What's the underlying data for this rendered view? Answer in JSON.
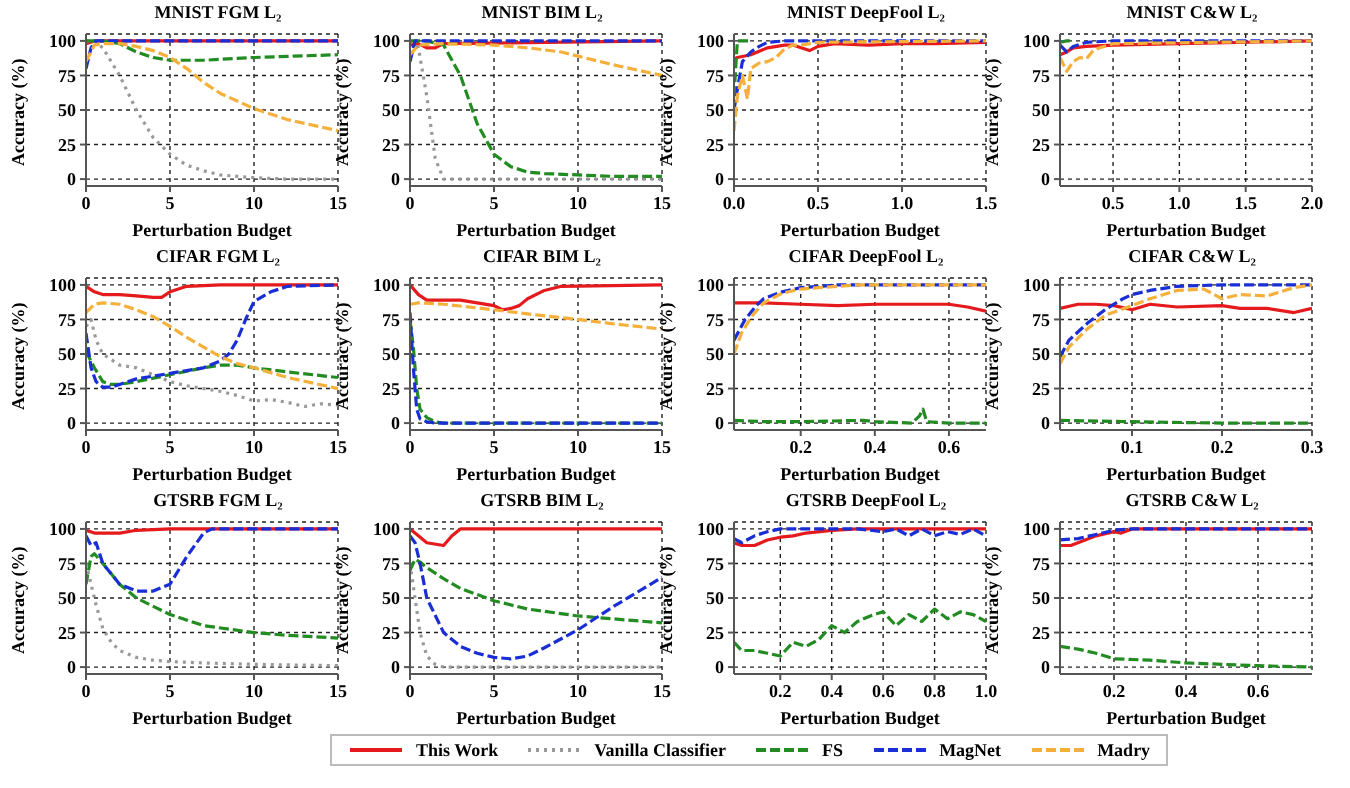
{
  "chart_data": [
    {
      "type": "line",
      "title": "MNIST FGM L₂",
      "xlabel": "Perturbation Budget",
      "ylabel": "Accuracy (%)",
      "xlim": [
        0,
        15
      ],
      "xticks": [
        0,
        5,
        10,
        15
      ],
      "ylim": [
        -5,
        105
      ],
      "yticks": [
        0,
        25,
        50,
        75,
        100
      ],
      "grid": true,
      "legend": "bottom",
      "series": [
        {
          "name": "This Work",
          "color": "#e41a1c",
          "line_style": "solid",
          "x": [
            0,
            0.5,
            15
          ],
          "values": [
            98,
            100,
            100
          ]
        },
        {
          "name": "Vanilla Classifier",
          "color": "#999999",
          "line_style": "dotted",
          "x": [
            0,
            0.5,
            1,
            2,
            3,
            4,
            5,
            6,
            7,
            8,
            9,
            10,
            12,
            15
          ],
          "values": [
            100,
            100,
            95,
            75,
            50,
            30,
            18,
            10,
            6,
            3,
            2,
            1,
            0,
            0
          ]
        },
        {
          "name": "FS",
          "color": "#228b22",
          "line_style": "dashed",
          "x": [
            0,
            1,
            2,
            3,
            4,
            5,
            6,
            7,
            10,
            15
          ],
          "values": [
            100,
            100,
            98,
            92,
            88,
            86,
            86,
            86,
            88,
            90
          ]
        },
        {
          "name": "MagNet",
          "color": "#1a2ed6",
          "line_style": "dashed",
          "x": [
            0,
            0.3,
            0.6,
            15
          ],
          "values": [
            80,
            95,
            100,
            100
          ]
        },
        {
          "name": "Madry",
          "color": "#f5b03c",
          "line_style": "dashed",
          "x": [
            0,
            0.5,
            1,
            2,
            3,
            4,
            5,
            6,
            7,
            8,
            10,
            12,
            15
          ],
          "values": [
            85,
            97,
            98,
            98,
            96,
            93,
            88,
            80,
            70,
            62,
            51,
            43,
            35
          ]
        }
      ]
    },
    {
      "type": "line",
      "title": "MNIST BIM L₂",
      "xlabel": "Perturbation Budget",
      "ylabel": "Accuracy (%)",
      "xlim": [
        0,
        15
      ],
      "xticks": [
        0,
        5,
        10,
        15
      ],
      "ylim": [
        -5,
        105
      ],
      "yticks": [
        0,
        25,
        50,
        75,
        100
      ],
      "grid": true,
      "series": [
        {
          "name": "This Work",
          "color": "#e41a1c",
          "line_style": "solid",
          "x": [
            0,
            0.5,
            1,
            1.5,
            2,
            15
          ],
          "values": [
            97,
            98,
            95,
            95,
            98,
            100
          ]
        },
        {
          "name": "Vanilla Classifier",
          "color": "#999999",
          "line_style": "dotted",
          "x": [
            0,
            0.5,
            1,
            1.5,
            2,
            15
          ],
          "values": [
            100,
            95,
            60,
            15,
            0,
            0
          ]
        },
        {
          "name": "FS",
          "color": "#228b22",
          "line_style": "dashed",
          "x": [
            0,
            1,
            2,
            3,
            4,
            5,
            6,
            7,
            8,
            10,
            12,
            15
          ],
          "values": [
            100,
            100,
            97,
            75,
            40,
            18,
            9,
            5,
            4,
            3,
            2,
            2
          ]
        },
        {
          "name": "MagNet",
          "color": "#1a2ed6",
          "line_style": "dashed",
          "x": [
            0,
            0.3,
            15
          ],
          "values": [
            85,
            100,
            100
          ]
        },
        {
          "name": "Madry",
          "color": "#f5b03c",
          "line_style": "dashed",
          "x": [
            0,
            0.5,
            2,
            5,
            7,
            9,
            10,
            12,
            15
          ],
          "values": [
            90,
            97,
            98,
            97,
            95,
            92,
            89,
            83,
            75
          ]
        }
      ]
    },
    {
      "type": "line",
      "title": "MNIST DeepFool L₂",
      "xlabel": "Perturbation Budget",
      "ylabel": "Accuracy (%)",
      "xlim": [
        0,
        1.5
      ],
      "xticks": [
        {
          "value": 0,
          "label": "0.0"
        },
        0.5,
        {
          "value": 1,
          "label": "1.0"
        },
        1.5
      ],
      "ylim": [
        -5,
        105
      ],
      "yticks": [
        0,
        25,
        50,
        75,
        100
      ],
      "grid": true,
      "series": [
        {
          "name": "This Work",
          "color": "#e41a1c",
          "line_style": "solid",
          "x": [
            0,
            0.02,
            0.1,
            0.2,
            0.3,
            0.35,
            0.4,
            0.45,
            0.5,
            0.6,
            0.8,
            1.0,
            1.2,
            1.5
          ],
          "values": [
            87,
            88,
            90,
            95,
            97,
            97,
            95,
            93,
            96,
            98,
            97,
            98,
            98,
            99
          ]
        },
        {
          "name": "MagNet",
          "color": "#1a2ed6",
          "line_style": "dashed",
          "x": [
            0,
            0.02,
            0.05,
            0.1,
            0.15,
            0.2,
            0.3,
            0.5,
            1.5
          ],
          "values": [
            50,
            65,
            85,
            92,
            96,
            99,
            100,
            100,
            100
          ]
        },
        {
          "name": "FS",
          "color": "#228b22",
          "line_style": "dashed",
          "x": [
            0,
            0.02,
            0.05,
            0.1
          ],
          "values": [
            60,
            100,
            100,
            100
          ]
        },
        {
          "name": "Madry",
          "color": "#f5b03c",
          "line_style": "dashed",
          "x": [
            0,
            0.02,
            0.05,
            0.08,
            0.1,
            0.15,
            0.2,
            0.25,
            0.3,
            0.35,
            0.4,
            0.5,
            1.5
          ],
          "values": [
            35,
            60,
            75,
            58,
            80,
            84,
            85,
            88,
            94,
            97,
            97,
            99,
            100
          ]
        }
      ]
    },
    {
      "type": "line",
      "title": "MNIST C&W L₂",
      "xlabel": "Perturbation Budget",
      "ylabel": "Accuracy (%)",
      "xlim": [
        0.1,
        2
      ],
      "xticks": [
        0.5,
        {
          "value": 1,
          "label": "1.0"
        },
        1.5,
        {
          "value": 2,
          "label": "2.0"
        }
      ],
      "ylim": [
        -5,
        105
      ],
      "yticks": [
        0,
        25,
        50,
        75,
        100
      ],
      "grid": true,
      "series": [
        {
          "name": "This Work",
          "color": "#e41a1c",
          "line_style": "solid",
          "x": [
            0.1,
            0.15,
            0.2,
            0.3,
            0.5,
            1,
            2
          ],
          "values": [
            90,
            92,
            95,
            96,
            97,
            98,
            100
          ]
        },
        {
          "name": "MagNet",
          "color": "#1a2ed6",
          "line_style": "dashed",
          "x": [
            0.1,
            0.15,
            0.2,
            0.3,
            0.5,
            2
          ],
          "values": [
            97,
            92,
            96,
            99,
            100,
            100
          ]
        },
        {
          "name": "Madry",
          "color": "#f5b03c",
          "line_style": "dashed",
          "x": [
            0.1,
            0.15,
            0.2,
            0.25,
            0.3,
            0.35,
            0.4,
            0.5,
            2
          ],
          "values": [
            88,
            78,
            85,
            88,
            87,
            93,
            95,
            98,
            100
          ]
        },
        {
          "name": "FS",
          "color": "#228b22",
          "line_style": "dashed",
          "x": [
            0.1,
            0.15,
            0.2
          ],
          "values": [
            99,
            100,
            100
          ]
        }
      ]
    },
    {
      "type": "line",
      "title": "CIFAR FGM L₂",
      "xlabel": "Perturbation Budget",
      "ylabel": "Accuracy (%)",
      "xlim": [
        0,
        15
      ],
      "xticks": [
        0,
        5,
        10,
        15
      ],
      "ylim": [
        -5,
        105
      ],
      "yticks": [
        0,
        25,
        50,
        75,
        100
      ],
      "grid": true,
      "series": [
        {
          "name": "This Work",
          "color": "#e41a1c",
          "line_style": "solid",
          "x": [
            0,
            0.5,
            1,
            2,
            3,
            4,
            4.5,
            5,
            6,
            8,
            15
          ],
          "values": [
            99,
            95,
            93,
            93,
            92,
            91,
            91,
            95,
            99,
            100,
            100
          ]
        },
        {
          "name": "Vanilla Classifier",
          "color": "#999999",
          "line_style": "dotted",
          "x": [
            0,
            0.3,
            0.6,
            1,
            2,
            3,
            4,
            5,
            6,
            7,
            8,
            9,
            10,
            11,
            12,
            13,
            14,
            15
          ],
          "values": [
            70,
            75,
            60,
            50,
            42,
            40,
            35,
            30,
            27,
            25,
            23,
            20,
            16,
            17,
            15,
            12,
            14,
            13
          ]
        },
        {
          "name": "FS",
          "color": "#228b22",
          "line_style": "dashed",
          "x": [
            0,
            0.5,
            1,
            1.5,
            2,
            3,
            5,
            7,
            8,
            9,
            10,
            12,
            15
          ],
          "values": [
            52,
            40,
            30,
            28,
            28,
            30,
            35,
            40,
            42,
            42,
            40,
            37,
            33
          ]
        },
        {
          "name": "MagNet",
          "color": "#1a2ed6",
          "line_style": "dashed",
          "x": [
            0,
            0.3,
            0.6,
            1,
            1.5,
            2,
            3,
            5,
            6,
            7,
            8,
            8.5,
            9,
            9.5,
            10,
            11,
            12,
            15
          ],
          "values": [
            65,
            40,
            30,
            26,
            26,
            28,
            32,
            36,
            38,
            40,
            45,
            50,
            60,
            75,
            88,
            95,
            99,
            100
          ]
        },
        {
          "name": "Madry",
          "color": "#f5b03c",
          "line_style": "dashed",
          "x": [
            0,
            0.5,
            1,
            2,
            3,
            4,
            5,
            6,
            7,
            8,
            9,
            10,
            12,
            15
          ],
          "values": [
            80,
            86,
            87,
            86,
            82,
            77,
            70,
            62,
            55,
            48,
            43,
            40,
            33,
            25
          ]
        }
      ]
    },
    {
      "type": "line",
      "title": "CIFAR BIM L₂",
      "xlabel": "Perturbation Budget",
      "ylabel": "Accuracy (%)",
      "xlim": [
        0,
        15
      ],
      "xticks": [
        0,
        5,
        10,
        15
      ],
      "ylim": [
        -5,
        105
      ],
      "yticks": [
        0,
        25,
        50,
        75,
        100
      ],
      "grid": true,
      "series": [
        {
          "name": "This Work",
          "color": "#e41a1c",
          "line_style": "solid",
          "x": [
            0,
            0.5,
            1,
            2,
            3,
            4,
            5,
            5.5,
            6,
            6.5,
            7,
            8,
            9,
            15
          ],
          "values": [
            100,
            93,
            89,
            89,
            89,
            87,
            85,
            82,
            83,
            85,
            90,
            96,
            99,
            100
          ]
        },
        {
          "name": "FS",
          "color": "#228b22",
          "line_style": "dashed",
          "x": [
            0,
            0.2,
            0.4,
            0.6,
            1,
            1.5,
            2,
            15
          ],
          "values": [
            75,
            55,
            25,
            10,
            4,
            1,
            0,
            0
          ]
        },
        {
          "name": "MagNet",
          "color": "#1a2ed6",
          "line_style": "dashed",
          "x": [
            0,
            0.2,
            0.4,
            0.6,
            1,
            1.5,
            15
          ],
          "values": [
            80,
            40,
            10,
            3,
            1,
            0,
            0
          ]
        },
        {
          "name": "Madry",
          "color": "#f5b03c",
          "line_style": "dashed",
          "x": [
            0,
            0.5,
            2,
            5,
            7,
            10,
            12,
            15
          ],
          "values": [
            86,
            87,
            86,
            82,
            79,
            75,
            72,
            68
          ]
        }
      ]
    },
    {
      "type": "line",
      "title": "CIFAR DeepFool L₂",
      "xlabel": "Perturbation Budget",
      "ylabel": "Accuracy (%)",
      "xlim": [
        0.02,
        0.7
      ],
      "xticks": [
        0.2,
        0.4,
        0.6
      ],
      "ylim": [
        -5,
        105
      ],
      "yticks": [
        0,
        25,
        50,
        75,
        100
      ],
      "grid": true,
      "series": [
        {
          "name": "This Work",
          "color": "#e41a1c",
          "line_style": "solid",
          "x": [
            0.02,
            0.1,
            0.2,
            0.3,
            0.4,
            0.5,
            0.6,
            0.65,
            0.7
          ],
          "values": [
            87,
            87,
            86,
            85,
            86,
            86,
            86,
            84,
            81
          ]
        },
        {
          "name": "FS",
          "color": "#228b22",
          "line_style": "dashed",
          "x": [
            0.02,
            0.1,
            0.2,
            0.37,
            0.4,
            0.5,
            0.52,
            0.53,
            0.54,
            0.6,
            0.7
          ],
          "values": [
            2,
            1,
            1,
            2,
            1,
            0,
            5,
            10,
            1,
            0,
            0
          ]
        },
        {
          "name": "MagNet",
          "color": "#1a2ed6",
          "line_style": "dashed",
          "x": [
            0.02,
            0.05,
            0.08,
            0.1,
            0.15,
            0.2,
            0.3,
            0.7
          ],
          "values": [
            60,
            75,
            85,
            90,
            95,
            98,
            100,
            100
          ]
        },
        {
          "name": "Madry",
          "color": "#f5b03c",
          "line_style": "dashed",
          "x": [
            0.02,
            0.04,
            0.07,
            0.1,
            0.15,
            0.2,
            0.25,
            0.3,
            0.35,
            0.7
          ],
          "values": [
            50,
            65,
            78,
            87,
            94,
            97,
            98,
            99,
            100,
            100
          ]
        }
      ]
    },
    {
      "type": "line",
      "title": "CIFAR C&W L₂",
      "xlabel": "Perturbation Budget",
      "ylabel": "Accuracy (%)",
      "xlim": [
        0.02,
        0.3
      ],
      "xticks": [
        0.1,
        0.2,
        0.3
      ],
      "ylim": [
        -5,
        105
      ],
      "yticks": [
        0,
        25,
        50,
        75,
        100
      ],
      "grid": true,
      "series": [
        {
          "name": "This Work",
          "color": "#e41a1c",
          "line_style": "solid",
          "x": [
            0.02,
            0.04,
            0.06,
            0.08,
            0.1,
            0.12,
            0.15,
            0.2,
            0.22,
            0.25,
            0.28,
            0.3
          ],
          "values": [
            83,
            86,
            86,
            85,
            82,
            86,
            84,
            85,
            83,
            83,
            80,
            83
          ]
        },
        {
          "name": "FS",
          "color": "#228b22",
          "line_style": "dashed",
          "x": [
            0.02,
            0.1,
            0.2,
            0.3
          ],
          "values": [
            2,
            1,
            0,
            0
          ]
        },
        {
          "name": "MagNet",
          "color": "#1a2ed6",
          "line_style": "dashed",
          "x": [
            0.02,
            0.03,
            0.05,
            0.07,
            0.09,
            0.1,
            0.12,
            0.15,
            0.2,
            0.3
          ],
          "values": [
            48,
            60,
            72,
            82,
            90,
            93,
            96,
            99,
            100,
            100
          ]
        },
        {
          "name": "Madry",
          "color": "#f5b03c",
          "line_style": "dashed",
          "x": [
            0.02,
            0.03,
            0.05,
            0.07,
            0.1,
            0.12,
            0.15,
            0.18,
            0.2,
            0.22,
            0.25,
            0.28,
            0.3
          ],
          "values": [
            43,
            55,
            68,
            78,
            85,
            90,
            96,
            97,
            90,
            93,
            92,
            98,
            100
          ]
        }
      ]
    },
    {
      "type": "line",
      "title": "GTSRB FGM L₂",
      "xlabel": "Perturbation Budget",
      "ylabel": "Accuracy (%)",
      "xlim": [
        0,
        15
      ],
      "xticks": [
        0,
        5,
        10,
        15
      ],
      "ylim": [
        -5,
        105
      ],
      "yticks": [
        0,
        25,
        50,
        75,
        100
      ],
      "grid": true,
      "series": [
        {
          "name": "This Work",
          "color": "#e41a1c",
          "line_style": "solid",
          "x": [
            0,
            0.5,
            1,
            2,
            3,
            5,
            15
          ],
          "values": [
            99,
            97,
            97,
            97,
            99,
            100,
            100
          ]
        },
        {
          "name": "Vanilla Classifier",
          "color": "#999999",
          "line_style": "dotted",
          "x": [
            0,
            0.3,
            0.6,
            1,
            1.5,
            2,
            3,
            4,
            5,
            7,
            10,
            15
          ],
          "values": [
            75,
            60,
            45,
            28,
            18,
            12,
            7,
            5,
            4,
            3,
            2,
            1
          ]
        },
        {
          "name": "FS",
          "color": "#228b22",
          "line_style": "dashed",
          "x": [
            0,
            0.3,
            0.5,
            1,
            2,
            3,
            5,
            7,
            10,
            12,
            15
          ],
          "values": [
            60,
            80,
            82,
            75,
            60,
            50,
            38,
            30,
            25,
            23,
            21
          ]
        },
        {
          "name": "MagNet",
          "color": "#1a2ed6",
          "line_style": "dashed",
          "x": [
            0,
            0.3,
            0.6,
            1,
            2,
            3,
            4,
            5,
            6,
            7,
            7.5,
            15
          ],
          "values": [
            95,
            88,
            90,
            75,
            60,
            55,
            55,
            60,
            80,
            97,
            100,
            100
          ]
        }
      ]
    },
    {
      "type": "line",
      "title": "GTSRB BIM L₂",
      "xlabel": "Perturbation Budget",
      "ylabel": "Accuracy (%)",
      "xlim": [
        0,
        15
      ],
      "xticks": [
        0,
        5,
        10,
        15
      ],
      "ylim": [
        -5,
        105
      ],
      "yticks": [
        0,
        25,
        50,
        75,
        100
      ],
      "grid": true,
      "series": [
        {
          "name": "This Work",
          "color": "#e41a1c",
          "line_style": "solid",
          "x": [
            0,
            0.5,
            1,
            2,
            2.5,
            3,
            15
          ],
          "values": [
            100,
            95,
            90,
            88,
            95,
            100,
            100
          ]
        },
        {
          "name": "Vanilla Classifier",
          "color": "#999999",
          "line_style": "dotted",
          "x": [
            0,
            0.3,
            0.6,
            1,
            1.5,
            2,
            15
          ],
          "values": [
            75,
            50,
            25,
            8,
            2,
            0,
            0
          ]
        },
        {
          "name": "FS",
          "color": "#228b22",
          "line_style": "dashed",
          "x": [
            0,
            0.3,
            0.6,
            1,
            2,
            3,
            5,
            7,
            10,
            12,
            15
          ],
          "values": [
            70,
            78,
            76,
            72,
            64,
            57,
            48,
            42,
            37,
            35,
            32
          ]
        },
        {
          "name": "MagNet",
          "color": "#1a2ed6",
          "line_style": "dashed",
          "x": [
            0,
            0.3,
            0.6,
            1,
            2,
            3,
            4,
            5,
            6,
            7,
            8,
            10,
            12,
            15
          ],
          "values": [
            95,
            90,
            75,
            50,
            25,
            15,
            10,
            7,
            6,
            8,
            14,
            27,
            43,
            65
          ]
        }
      ]
    },
    {
      "type": "line",
      "title": "GTSRB DeepFool L₂",
      "xlabel": "Perturbation Budget",
      "ylabel": "Accuracy (%)",
      "xlim": [
        0.02,
        1
      ],
      "xticks": [
        0.2,
        0.4,
        0.6,
        0.8,
        {
          "value": 1,
          "label": "1.0"
        }
      ],
      "ylim": [
        -5,
        105
      ],
      "yticks": [
        0,
        25,
        50,
        75,
        100
      ],
      "grid": true,
      "series": [
        {
          "name": "This Work",
          "color": "#e41a1c",
          "line_style": "solid",
          "x": [
            0.02,
            0.05,
            0.1,
            0.15,
            0.2,
            0.25,
            0.3,
            0.4,
            0.5,
            1
          ],
          "values": [
            90,
            88,
            88,
            92,
            94,
            95,
            97,
            99,
            100,
            100
          ]
        },
        {
          "name": "FS",
          "color": "#228b22",
          "line_style": "dashed",
          "x": [
            0.02,
            0.05,
            0.1,
            0.15,
            0.2,
            0.25,
            0.3,
            0.35,
            0.4,
            0.45,
            0.5,
            0.55,
            0.6,
            0.65,
            0.7,
            0.75,
            0.8,
            0.85,
            0.9,
            0.95,
            1
          ],
          "values": [
            18,
            12,
            12,
            10,
            8,
            18,
            15,
            20,
            30,
            25,
            33,
            37,
            40,
            30,
            38,
            33,
            42,
            35,
            40,
            38,
            33
          ]
        },
        {
          "name": "MagNet",
          "color": "#1a2ed6",
          "line_style": "dashed",
          "x": [
            0.02,
            0.05,
            0.1,
            0.15,
            0.2,
            0.3,
            0.4,
            0.5,
            0.6,
            0.65,
            0.7,
            0.75,
            0.8,
            0.85,
            0.9,
            0.95,
            1
          ],
          "values": [
            93,
            90,
            95,
            98,
            100,
            100,
            100,
            100,
            98,
            100,
            95,
            100,
            95,
            98,
            96,
            100,
            95
          ]
        }
      ]
    },
    {
      "type": "line",
      "title": "GTSRB C&W L₂",
      "xlabel": "Perturbation Budget",
      "ylabel": "Accuracy (%)",
      "xlim": [
        0.05,
        0.75
      ],
      "xticks": [
        0.2,
        0.4,
        0.6
      ],
      "ylim": [
        -5,
        105
      ],
      "yticks": [
        0,
        25,
        50,
        75,
        100
      ],
      "grid": true,
      "series": [
        {
          "name": "This Work",
          "color": "#e41a1c",
          "line_style": "solid",
          "x": [
            0.05,
            0.08,
            0.1,
            0.15,
            0.2,
            0.22,
            0.25,
            0.75
          ],
          "values": [
            88,
            88,
            90,
            95,
            98,
            97,
            100,
            100
          ]
        },
        {
          "name": "FS",
          "color": "#228b22",
          "line_style": "dashed",
          "x": [
            0.05,
            0.1,
            0.15,
            0.2,
            0.3,
            0.4,
            0.5,
            0.6,
            0.75
          ],
          "values": [
            15,
            13,
            10,
            6,
            5,
            3,
            2,
            1,
            0
          ]
        },
        {
          "name": "MagNet",
          "color": "#1a2ed6",
          "line_style": "dashed",
          "x": [
            0.05,
            0.1,
            0.15,
            0.2,
            0.25,
            0.75
          ],
          "values": [
            92,
            93,
            96,
            99,
            100,
            100
          ]
        }
      ]
    }
  ]
}
